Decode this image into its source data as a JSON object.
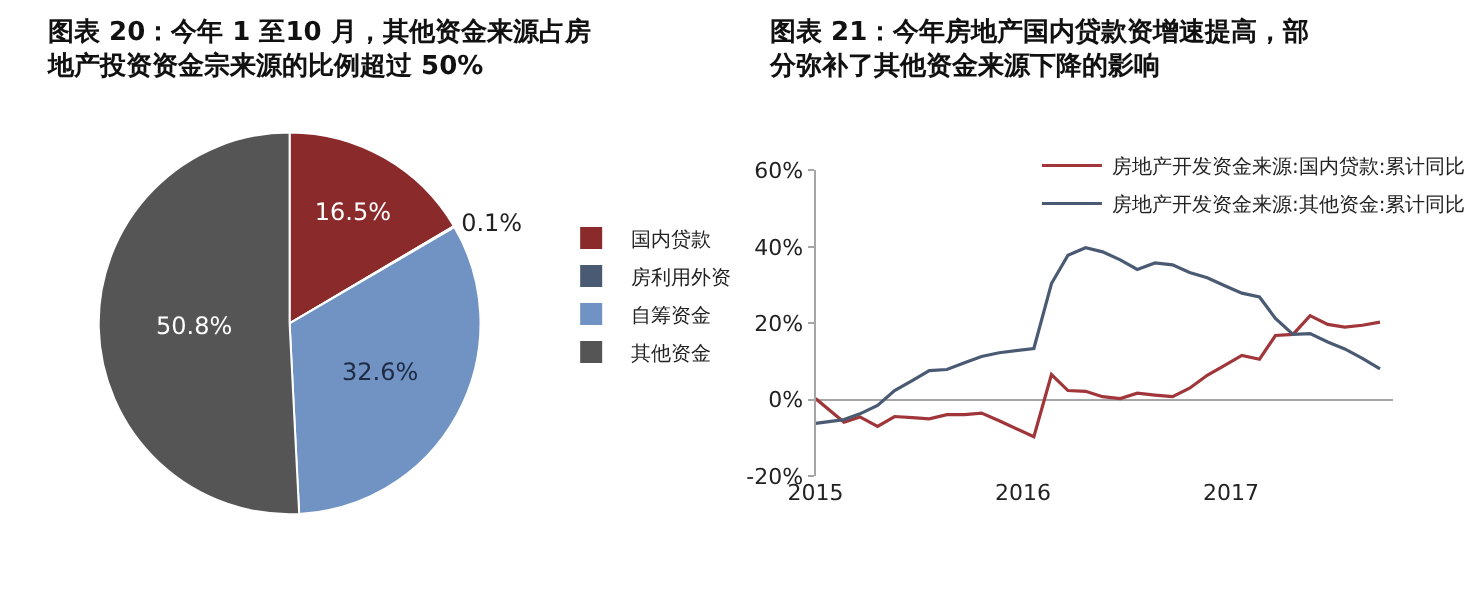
{
  "chart_data": [
    {
      "type": "pie",
      "title": "图表 20：今年 1 至10 月，其他资金来源占房地产投资资金宗来源的比例超过 50%",
      "categories": [
        "国内贷款",
        "房利用外资",
        "自筹资金",
        "其他资金"
      ],
      "values": [
        16.5,
        0.1,
        32.6,
        50.8
      ],
      "value_labels": [
        "16.5%",
        "0.1%",
        "32.6%",
        "50.8%"
      ],
      "colors": [
        "#8b2a2a",
        "#4a5a73",
        "#7093c4",
        "#555555"
      ],
      "legend": "right"
    },
    {
      "type": "line",
      "title": "图表 21：今年房地产国内贷款资增速提高，部分弥补了其他资金来源下降的影响",
      "legend": "top",
      "xlim": [
        "2015-01-01",
        "2017-10-12"
      ],
      "xticks": [
        {
          "value": "2015-01-01",
          "label": "2015"
        },
        {
          "value": "2016-01-01",
          "label": "2016"
        },
        {
          "value": "2017-01-01",
          "label": "2017"
        }
      ],
      "ylim": [
        -20,
        60
      ],
      "yticks": [
        {
          "value": -20,
          "label": "-20%"
        },
        {
          "value": 0,
          "label": "0%"
        },
        {
          "value": 20,
          "label": "20%"
        },
        {
          "value": 40,
          "label": "40%"
        },
        {
          "value": 60,
          "label": "60%"
        }
      ],
      "x": [
        "2015-01-01",
        "2015-02-20",
        "2015-03-20",
        "2015-04-20",
        "2015-05-20",
        "2015-06-20",
        "2015-07-20",
        "2015-08-20",
        "2015-09-20",
        "2015-10-20",
        "2015-11-20",
        "2016-01-20",
        "2016-02-20",
        "2016-03-20",
        "2016-04-20",
        "2016-05-20",
        "2016-06-20",
        "2016-07-20",
        "2016-08-20",
        "2016-09-20",
        "2016-10-20",
        "2016-11-20",
        "2016-12-20",
        "2017-01-20",
        "2017-02-20",
        "2017-03-20",
        "2017-04-20",
        "2017-05-20",
        "2017-06-20",
        "2017-07-20",
        "2017-08-20",
        "2017-09-20"
      ],
      "series": [
        {
          "name": "房地产开发资金来源:国内贷款:累计同比",
          "color": "#a0363a",
          "values": [
            0.3,
            -5.9,
            -4.5,
            -7,
            -4.4,
            -4.7,
            -5,
            -3.9,
            -3.9,
            -3.5,
            -5.5,
            -9.7,
            6.6,
            2.4,
            2.2,
            0.8,
            0.3,
            1.7,
            1.2,
            0.8,
            3,
            6.4,
            8.9,
            11.6,
            10.6,
            16.8,
            17.1,
            22,
            19.7,
            19,
            19.5,
            20.3
          ]
        },
        {
          "name": "房地产开发资金来源:其他资金:累计同比",
          "color": "#4a5a73",
          "values": [
            -6.2,
            -5.2,
            -3.7,
            -1.5,
            2.4,
            5,
            7.6,
            7.9,
            9.7,
            11.3,
            12.3,
            13.4,
            30.4,
            37.8,
            39.8,
            38.7,
            36.6,
            34.1,
            35.8,
            35.3,
            33.3,
            31.9,
            29.9,
            27.9,
            26.9,
            21.3,
            17.1,
            17.3,
            15.1,
            13.3,
            10.8,
            8.1
          ]
        }
      ]
    }
  ]
}
